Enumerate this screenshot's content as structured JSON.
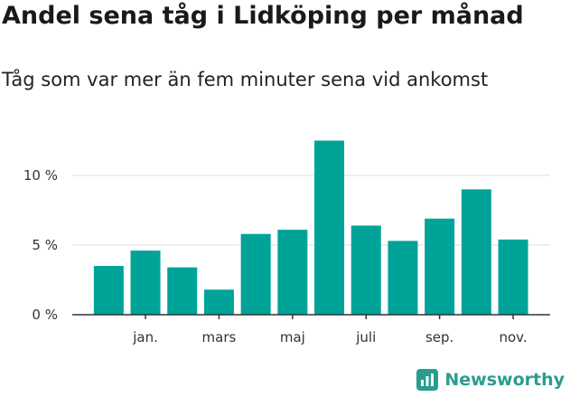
{
  "header": {
    "title": "Andel sena tåg i Lidköping per månad",
    "subtitle": "Tåg som var mer än fem minuter sena vid ankomst"
  },
  "brand": {
    "name": "Newsworthy",
    "color": "#2a9d8f"
  },
  "colors": {
    "bar": "#00a398",
    "grid": "#dddddd",
    "axis": "#333333"
  },
  "chart_data": {
    "type": "bar",
    "title": "Andel sena tåg i Lidköping per månad",
    "subtitle": "Tåg som var mer än fem minuter sena vid ankomst",
    "values": [
      3.5,
      4.6,
      3.4,
      1.8,
      5.8,
      6.1,
      12.5,
      6.4,
      5.3,
      6.9,
      9.0,
      5.4
    ],
    "tick_labels": [
      {
        "index": 1,
        "label": "jan."
      },
      {
        "index": 3,
        "label": "mars"
      },
      {
        "index": 5,
        "label": "maj"
      },
      {
        "index": 7,
        "label": "juli"
      },
      {
        "index": 9,
        "label": "sep."
      },
      {
        "index": 11,
        "label": "nov."
      }
    ],
    "y_ticks": [
      {
        "value": 0,
        "label": "0 %"
      },
      {
        "value": 5,
        "label": "5 %"
      },
      {
        "value": 10,
        "label": "10 %"
      }
    ],
    "ylim": [
      0,
      12.5
    ],
    "grid": true,
    "legend": "none"
  }
}
